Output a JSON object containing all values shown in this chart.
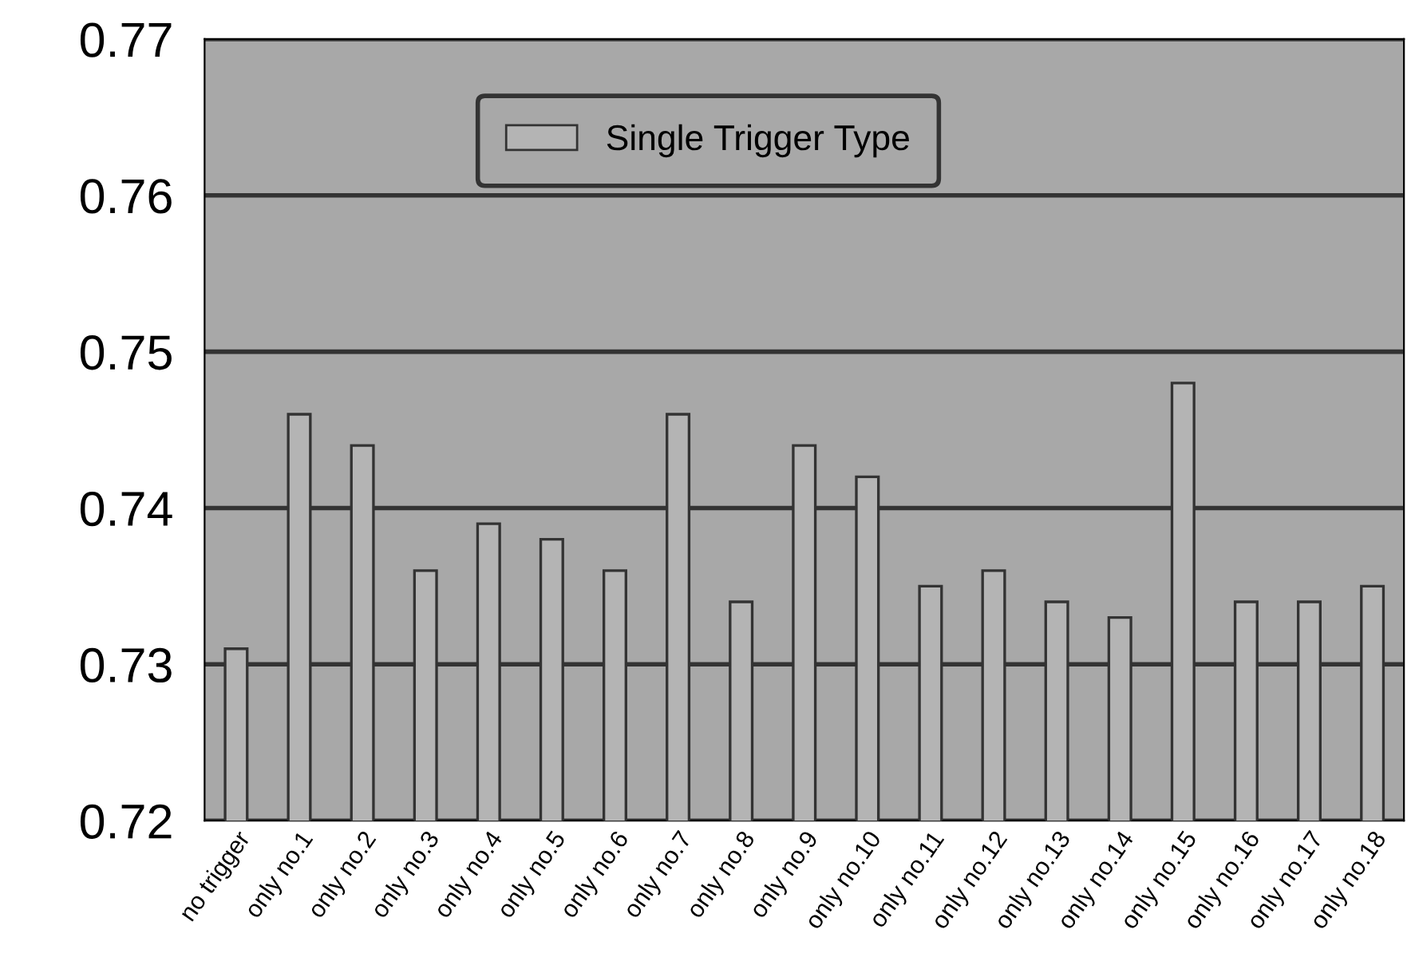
{
  "chart_data": {
    "type": "bar",
    "categories": [
      "no trigger",
      "only no.1",
      "only no.2",
      "only no.3",
      "only no.4",
      "only no.5",
      "only no.6",
      "only no.7",
      "only no.8",
      "only no.9",
      "only no.10",
      "only no.11",
      "only no.12",
      "only no.13",
      "only no.14",
      "only no.15",
      "only no.16",
      "only no.17",
      "only no.18"
    ],
    "series": [
      {
        "name": "Single Trigger Type",
        "color": "#b4b4b4",
        "values": [
          0.731,
          0.746,
          0.744,
          0.736,
          0.739,
          0.738,
          0.736,
          0.746,
          0.734,
          0.744,
          0.742,
          0.735,
          0.736,
          0.734,
          0.733,
          0.748,
          0.734,
          0.734,
          0.735
        ]
      }
    ],
    "ylim": [
      0.72,
      0.77
    ],
    "yticks": [
      0.72,
      0.73,
      0.74,
      0.75,
      0.76,
      0.77
    ],
    "grid": "y",
    "legend": "top"
  }
}
